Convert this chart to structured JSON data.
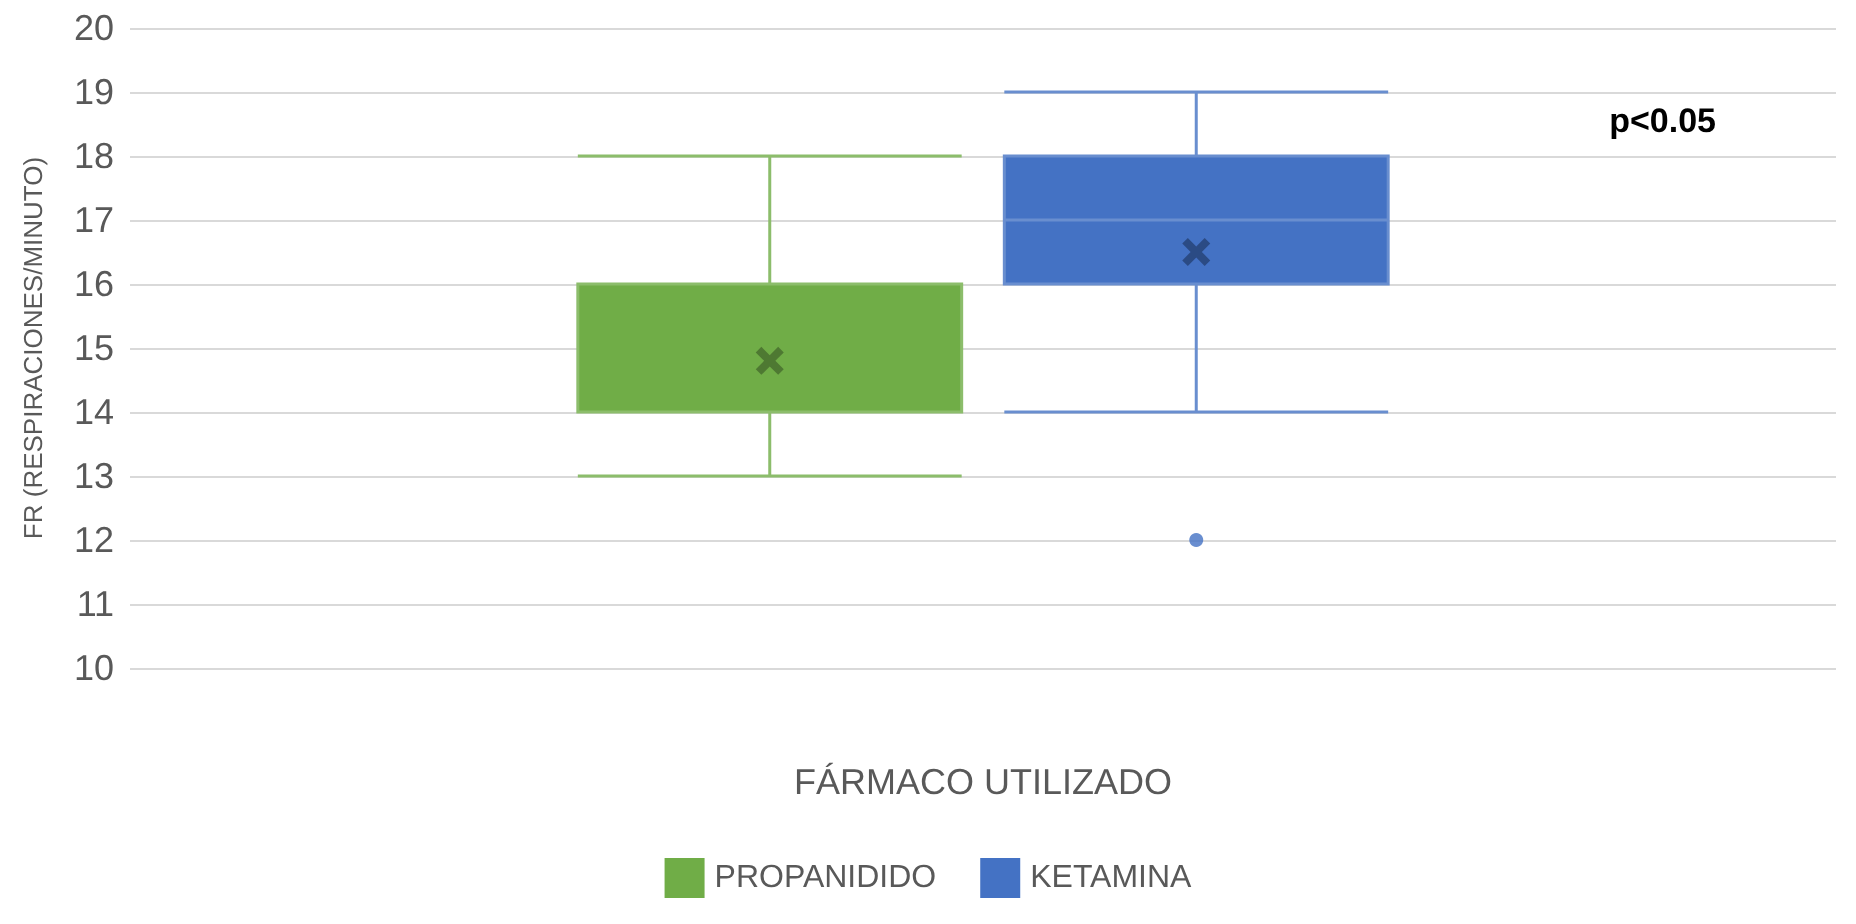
{
  "chart_data": {
    "type": "box",
    "categories": [
      null
    ],
    "xlabel": "FÁRMACO UTILIZADO",
    "ylabel": "FR (RESPIRACIONES/MINUTO)",
    "annotations": [
      "p<0.05"
    ],
    "ylim": [
      10,
      20
    ],
    "yticks": [
      10,
      11,
      12,
      13,
      14,
      15,
      16,
      17,
      18,
      19,
      20
    ],
    "grid": "y",
    "legend": "bottom",
    "series": [
      {
        "name": "PROPANIDIDO",
        "color": "#70ad47",
        "boxes": [
          {
            "low": 13,
            "q1": 14,
            "median": 14,
            "q3": 16,
            "high": 18,
            "mean": 14.8
          }
        ]
      },
      {
        "name": "KETAMINA",
        "color": "#4472c4",
        "boxes": [
          {
            "low": 14,
            "q1": 16,
            "median": 17,
            "q3": 18,
            "high": 19,
            "mean": 16.5,
            "outliers": [
              12
            ]
          }
        ]
      }
    ]
  }
}
